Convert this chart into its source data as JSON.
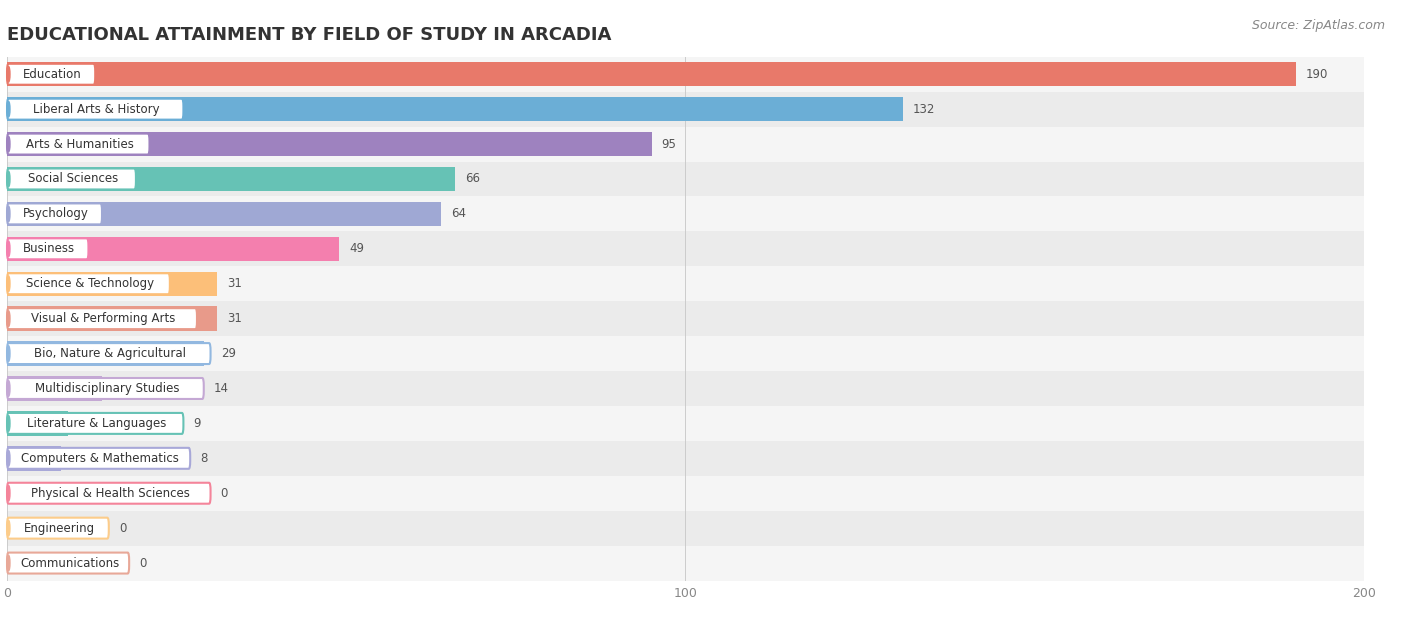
{
  "title": "EDUCATIONAL ATTAINMENT BY FIELD OF STUDY IN ARCADIA",
  "source": "Source: ZipAtlas.com",
  "categories": [
    "Education",
    "Liberal Arts & History",
    "Arts & Humanities",
    "Social Sciences",
    "Psychology",
    "Business",
    "Science & Technology",
    "Visual & Performing Arts",
    "Bio, Nature & Agricultural",
    "Multidisciplinary Studies",
    "Literature & Languages",
    "Computers & Mathematics",
    "Physical & Health Sciences",
    "Engineering",
    "Communications"
  ],
  "values": [
    190,
    132,
    95,
    66,
    64,
    49,
    31,
    31,
    29,
    14,
    9,
    8,
    0,
    0,
    0
  ],
  "bar_colors": [
    "#E8796A",
    "#6BAED6",
    "#9E82BF",
    "#66C2B5",
    "#9FA8D4",
    "#F47FAE",
    "#FCBF79",
    "#E89A8A",
    "#92B8E0",
    "#C4A8D4",
    "#66C2B5",
    "#A8A8D8",
    "#F4849A",
    "#FCCC8A",
    "#E8A898"
  ],
  "xlim": [
    0,
    200
  ],
  "xticks": [
    0,
    100,
    200
  ],
  "row_colors": [
    "#f5f5f5",
    "#ebebeb"
  ],
  "title_fontsize": 13,
  "source_fontsize": 9,
  "label_fontsize": 8.5,
  "value_fontsize": 8.5,
  "tick_fontsize": 9,
  "bar_height": 0.7
}
